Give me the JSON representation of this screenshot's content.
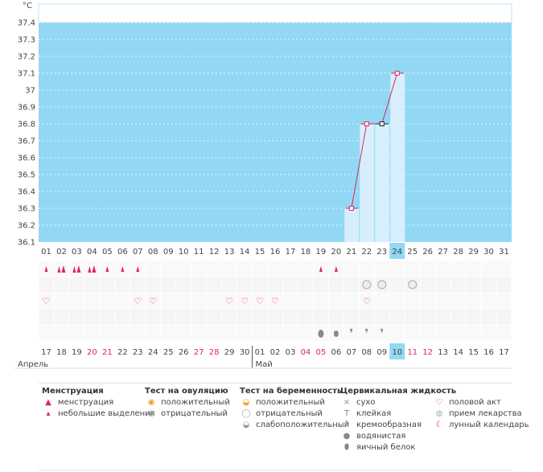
{
  "chart_data": {
    "type": "bar",
    "unit_label": "°C",
    "ylim": [
      36.1,
      37.4
    ],
    "y_ticks": [
      "36.1",
      "36.2",
      "36.3",
      "36.4",
      "36.5",
      "36.6",
      "36.7",
      "36.8",
      "36.9",
      "37",
      "37.1",
      "37.2",
      "37.3",
      "37.4"
    ],
    "cycle_days": [
      "01",
      "02",
      "03",
      "04",
      "05",
      "06",
      "07",
      "08",
      "09",
      "10",
      "11",
      "12",
      "13",
      "14",
      "15",
      "16",
      "17",
      "18",
      "19",
      "20",
      "21",
      "22",
      "23",
      "24",
      "25",
      "26",
      "27",
      "28",
      "29",
      "30",
      "31"
    ],
    "temperature_points": [
      {
        "day": "21",
        "value": 36.3
      },
      {
        "day": "22",
        "value": 36.8
      },
      {
        "day": "23",
        "value": 36.8
      },
      {
        "day": "24",
        "value": 37.1
      }
    ],
    "highlight_day": "24",
    "dates": [
      {
        "d": "17",
        "red": false
      },
      {
        "d": "18",
        "red": false
      },
      {
        "d": "19",
        "red": false
      },
      {
        "d": "20",
        "red": true
      },
      {
        "d": "21",
        "red": true
      },
      {
        "d": "22",
        "red": false
      },
      {
        "d": "23",
        "red": false
      },
      {
        "d": "24",
        "red": false
      },
      {
        "d": "25",
        "red": false
      },
      {
        "d": "26",
        "red": false
      },
      {
        "d": "27",
        "red": true
      },
      {
        "d": "28",
        "red": true
      },
      {
        "d": "29",
        "red": false
      },
      {
        "d": "30",
        "red": false
      },
      {
        "d": "01",
        "red": false
      },
      {
        "d": "02",
        "red": false
      },
      {
        "d": "03",
        "red": false
      },
      {
        "d": "04",
        "red": true
      },
      {
        "d": "05",
        "red": true
      },
      {
        "d": "06",
        "red": false
      },
      {
        "d": "07",
        "red": false
      },
      {
        "d": "08",
        "red": false
      },
      {
        "d": "09",
        "red": false
      },
      {
        "d": "10",
        "red": false
      },
      {
        "d": "11",
        "red": true
      },
      {
        "d": "12",
        "red": true
      },
      {
        "d": "13",
        "red": false
      },
      {
        "d": "14",
        "red": false
      },
      {
        "d": "15",
        "red": false
      },
      {
        "d": "16",
        "red": false
      },
      {
        "d": "17",
        "red": false
      }
    ],
    "months": [
      "Апрель",
      "Май"
    ],
    "marks": {
      "menstruation": [
        {
          "day": 1,
          "kind": "small"
        },
        {
          "day": 2,
          "kind": "heavy"
        },
        {
          "day": 3,
          "kind": "heavy"
        },
        {
          "day": 4,
          "kind": "heavy"
        },
        {
          "day": 5,
          "kind": "small"
        },
        {
          "day": 6,
          "kind": "small"
        },
        {
          "day": 7,
          "kind": "small"
        },
        {
          "day": 19,
          "kind": "small"
        },
        {
          "day": 20,
          "kind": "small"
        }
      ],
      "pregnancy_test": [
        22,
        23,
        25
      ],
      "intercourse": [
        1,
        7,
        8,
        13,
        14,
        15,
        16,
        22
      ],
      "cervical_fluid": [
        {
          "day": 19,
          "kind": "egg-white"
        },
        {
          "day": 20,
          "kind": "watery"
        },
        {
          "day": 21,
          "kind": "creamy"
        },
        {
          "day": 22,
          "kind": "creamy"
        },
        {
          "day": 23,
          "kind": "creamy"
        }
      ]
    },
    "colors": {
      "background": "#92d8f5",
      "bar": "#d7effc",
      "line": "#e0245e",
      "accent": "#e0245e",
      "highlight": "#92d8f5"
    }
  },
  "legend": [
    {
      "title": "Менструация",
      "items": [
        {
          "icon": "heavy-drop-icon",
          "glyph": "▲",
          "label": "менструация"
        },
        {
          "icon": "small-drop-icon",
          "glyph": "▴",
          "label": "небольшие выделения"
        }
      ]
    },
    {
      "title": "Тест на овуляцию",
      "items": [
        {
          "icon": "ovulation-positive-icon",
          "glyph": "◉",
          "label": "положительный"
        },
        {
          "icon": "ovulation-negative-icon",
          "glyph": "◉",
          "label": "отрицательный"
        }
      ]
    },
    {
      "title": "Тест на беременность",
      "items": [
        {
          "icon": "pregnancy-positive-icon",
          "glyph": "◒",
          "label": "положительный"
        },
        {
          "icon": "pregnancy-negative-icon",
          "glyph": "◯",
          "label": "отрицательный"
        },
        {
          "icon": "pregnancy-weak-icon",
          "glyph": "◒",
          "label": "слабоположительный"
        }
      ]
    },
    {
      "title": "Цервикальная жидкость",
      "items": [
        {
          "icon": "dry-icon",
          "glyph": "×",
          "label": "сухо"
        },
        {
          "icon": "sticky-icon",
          "glyph": "T",
          "label": "клейкая"
        },
        {
          "icon": "creamy-icon",
          "glyph": "❜",
          "label": "кремообразная"
        },
        {
          "icon": "watery-icon",
          "glyph": "●",
          "label": "водянистая"
        },
        {
          "icon": "egg-white-icon",
          "glyph": "⬮",
          "label": "яичный белок"
        }
      ]
    },
    {
      "title": "",
      "items": [
        {
          "icon": "intercourse-icon",
          "glyph": "♡",
          "label": "половой акт"
        },
        {
          "icon": "medicine-icon",
          "glyph": "◍",
          "label": "прием лекарства"
        },
        {
          "icon": "lunar-calendar-icon",
          "glyph": "☾",
          "label": "лунный календарь"
        }
      ]
    }
  ]
}
